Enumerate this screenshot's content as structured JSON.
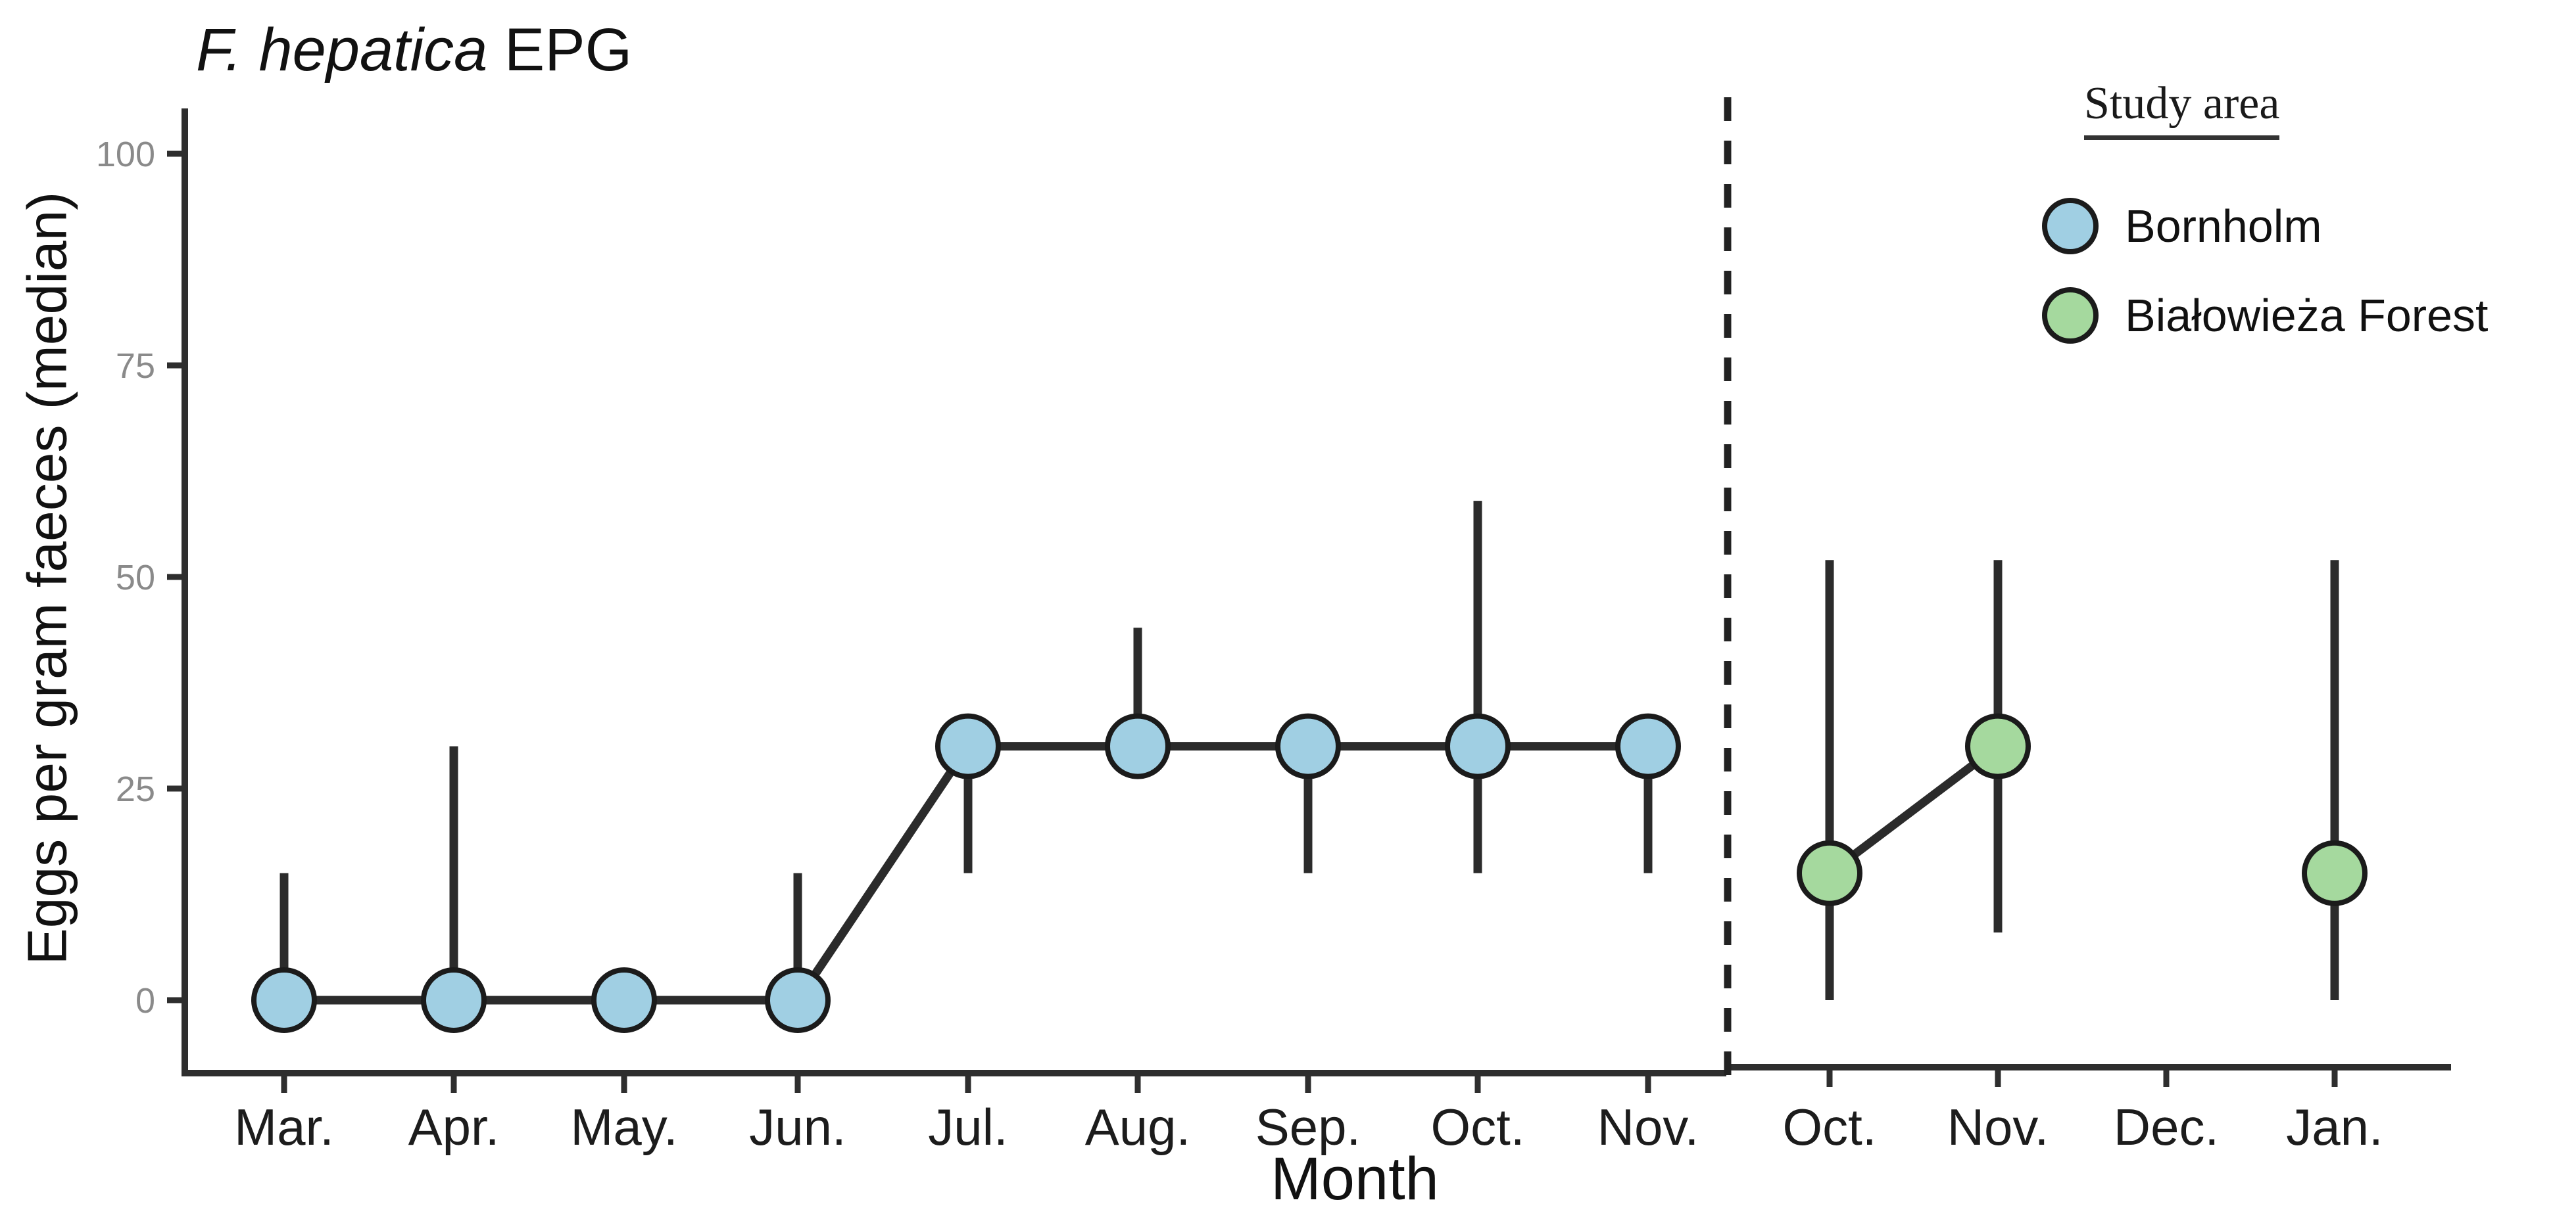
{
  "figure": {
    "title": {
      "italic": "F. hepatica",
      "regular": " EPG"
    },
    "legend": {
      "title": "Study area",
      "items": [
        {
          "label": "Bornholm"
        },
        {
          "label": "Białowieża Forest"
        }
      ]
    }
  },
  "chart_data": {
    "type": "pointrange-line",
    "title": "F. hepatica EPG",
    "xlabel": "Month",
    "ylabel": "Eggs per gram faeces (median)",
    "ylim": [
      0,
      100
    ],
    "y_ticks": [
      0,
      25,
      50,
      75,
      100
    ],
    "grid": false,
    "legend_position": "top-right",
    "axis_color": "#2e2e2e",
    "tick_label_color": "#8a8a8a",
    "month_label_color": "#1c1c1c",
    "panels": [
      {
        "series": "Bornholm",
        "marker_fill": "#a0cfe3",
        "marker_stroke": "#1b1b1b",
        "categories": [
          "Mar.",
          "Apr.",
          "May.",
          "Jun.",
          "Jul.",
          "Aug.",
          "Sep.",
          "Oct.",
          "Nov."
        ],
        "median": [
          0,
          0,
          0,
          0,
          30,
          30,
          30,
          30,
          30
        ],
        "range_low": [
          0,
          0,
          0,
          0,
          15,
          30,
          15,
          15,
          15
        ],
        "range_high": [
          15,
          30,
          0,
          15,
          30,
          44,
          30,
          59,
          30
        ],
        "connect": "all"
      },
      {
        "series": "Białowieża Forest",
        "marker_fill": "#a5d99e",
        "marker_stroke": "#1b1b1b",
        "categories": [
          "Oct.",
          "Nov.",
          "Dec.",
          "Jan."
        ],
        "median": [
          15,
          30,
          null,
          15
        ],
        "range_low": [
          0,
          8,
          null,
          0
        ],
        "range_high": [
          52,
          52,
          null,
          52
        ],
        "connect_segments": [
          [
            0,
            1
          ]
        ]
      }
    ],
    "divider": {
      "style": "dashed",
      "orientation": "vertical",
      "between_series": [
        "Bornholm",
        "Białowieża Forest"
      ]
    }
  }
}
